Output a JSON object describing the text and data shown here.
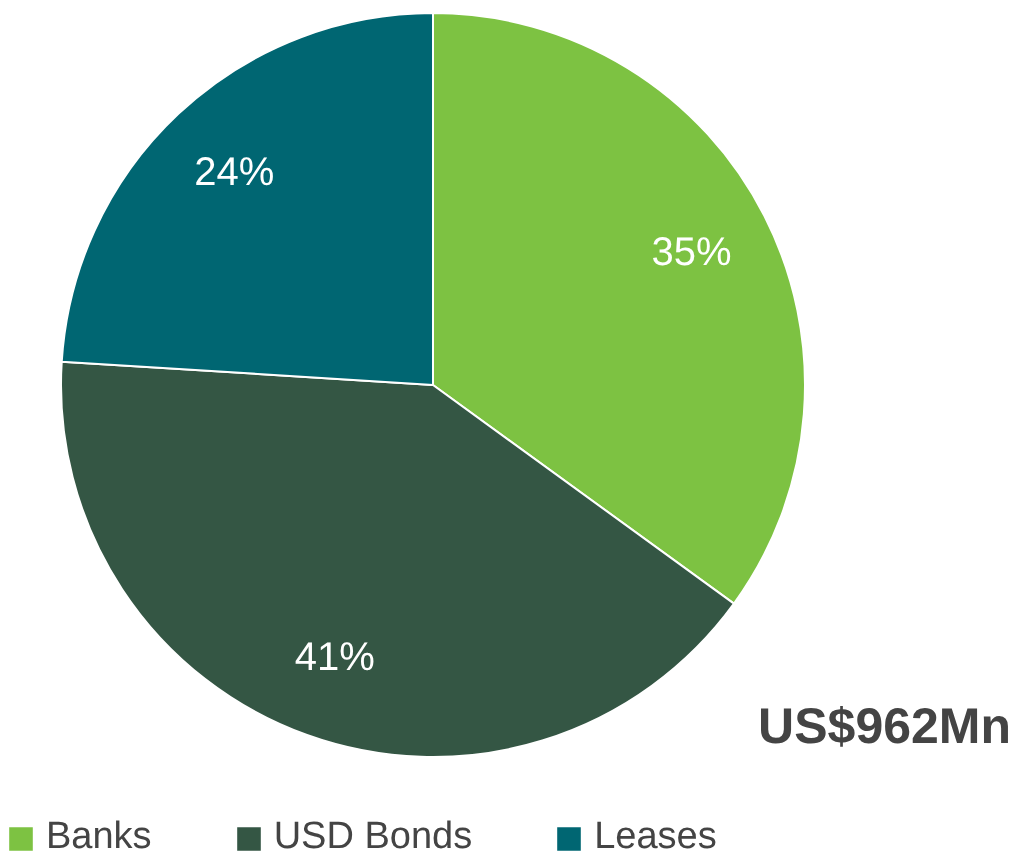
{
  "chart_data": {
    "type": "pie",
    "categories": [
      "Banks",
      "USD Bonds",
      "Leases"
    ],
    "values": [
      35,
      41,
      24
    ],
    "colors": [
      "#7dc242",
      "#345644",
      "#006672"
    ],
    "value_labels": [
      "35%",
      "41%",
      "24%"
    ],
    "legend": "bottom",
    "annotations": [
      "US$962Mn"
    ]
  }
}
